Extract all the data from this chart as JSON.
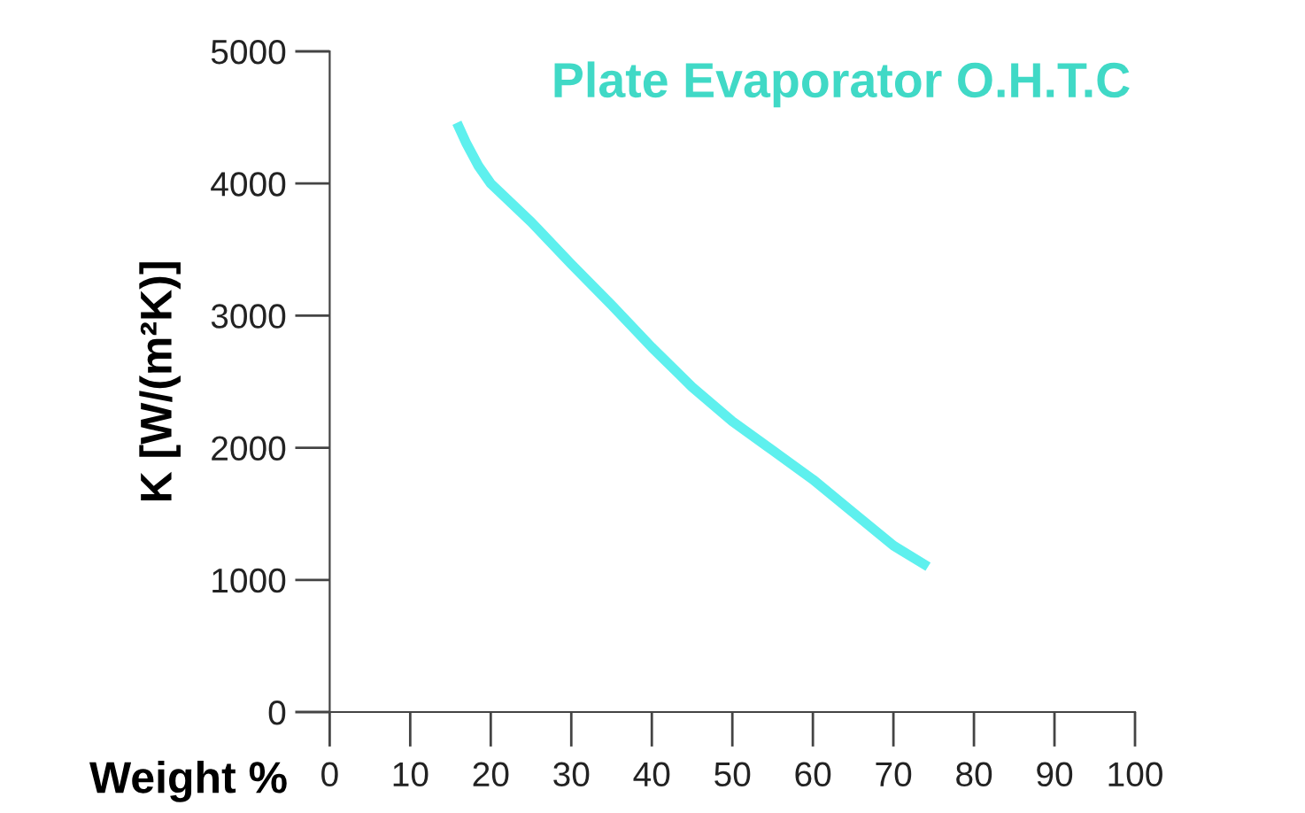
{
  "chart_data": {
    "type": "line",
    "title": "Plate Evaporator O.H.T.C",
    "xlabel": "Weight %",
    "ylabel": "K [W/(m²K)]",
    "series": [
      {
        "color": "#5ef0ee",
        "x": [
          15.8,
          17,
          18.5,
          20,
          25,
          30,
          35,
          40,
          45,
          50,
          55,
          60,
          65,
          70,
          74.3
        ],
        "values": [
          4460,
          4300,
          4130,
          4000,
          3710,
          3390,
          3080,
          2760,
          2460,
          2200,
          1980,
          1760,
          1510,
          1260,
          1100
        ]
      }
    ],
    "xlim": [
      -4,
      100
    ],
    "xticks": [
      0,
      10,
      20,
      30,
      40,
      50,
      60,
      70,
      80,
      90,
      100
    ],
    "ylim": [
      0,
      5000
    ],
    "yticks": [
      0,
      1000,
      2000,
      3000,
      4000,
      5000
    ],
    "grid": false,
    "legend": false,
    "marker": "none",
    "line_style": "solid"
  }
}
